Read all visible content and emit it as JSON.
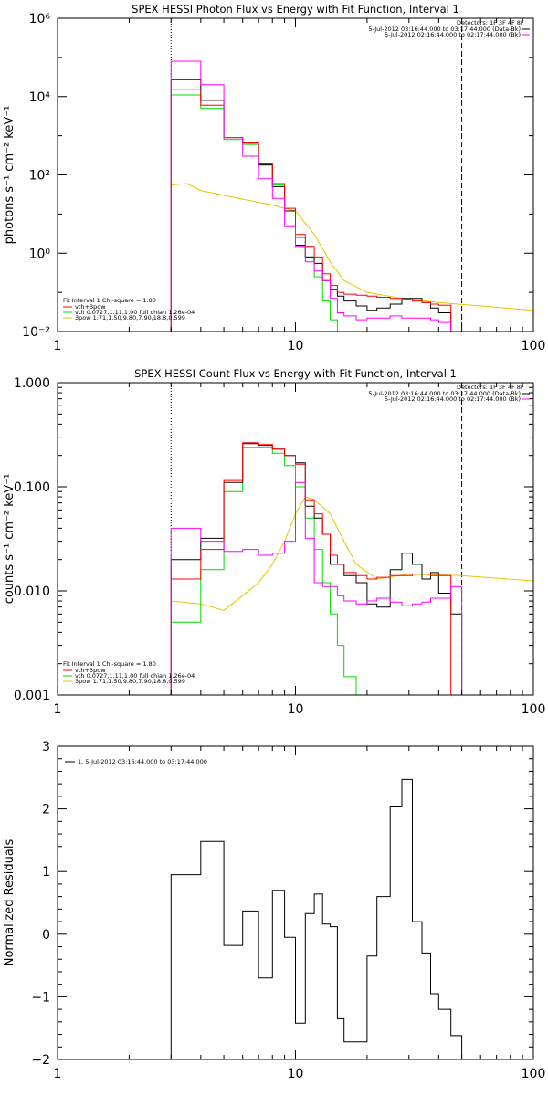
{
  "colors": {
    "data": "#000000",
    "total_fit": "#ff0000",
    "thermal": "#00dd00",
    "power_law": "#e8c400",
    "background": "#ff00ff"
  },
  "chart_data": [
    {
      "type": "line",
      "title": "SPEX HESSI Photon Flux vs Energy with Fit Function, Interval 1",
      "ylabel": "photons s⁻¹ cm⁻² keV⁻¹",
      "xlabel": "",
      "xscale": "log",
      "yscale": "log",
      "xlim": [
        1,
        100
      ],
      "ylim": [
        0.01,
        1000000
      ],
      "xticks": [
        "1",
        "10",
        "100"
      ],
      "yticks": [
        "10⁻²",
        "10⁰",
        "10²",
        "10⁴",
        "10⁶"
      ],
      "vlines": {
        "dotted": 3,
        "dashed": 50
      },
      "detectors": "Detectors: 1F 3F 4F 8F",
      "legend_right": [
        {
          "text": "5-Jul-2012 03:16:44.000 to 03:17:44.000 (Data-Bk)",
          "color": "#000000"
        },
        {
          "text": "5-Jul-2012 02:16:44.000 to 02:17:44.000 (Bk)",
          "color": "#ff00ff"
        }
      ],
      "fit_header": "Fit Interval  1    Chi-square = 1.80",
      "legend_left": [
        {
          "text": "vth+3pow",
          "color": "#ff0000"
        },
        {
          "text": "vth 0.0727,1.11,1.00  full chian 1.26e-04",
          "color": "#00dd00"
        },
        {
          "text": "3pow 1.71,1.50,9.80,7.90,18.8,0.599",
          "color": "#e8c400"
        }
      ],
      "edges": [
        3,
        4,
        5,
        6,
        7,
        8,
        9,
        10,
        11,
        12,
        13,
        14,
        15,
        16,
        18,
        20,
        22,
        25,
        28,
        31,
        34,
        37,
        40,
        45,
        50
      ],
      "series": [
        {
          "name": "Data-Bk",
          "color": "#000000",
          "values": [
            27000,
            8000,
            900,
            650,
            180,
            50,
            12,
            1.6,
            0.8,
            0.55,
            0.2,
            0.12,
            0.08,
            0.06,
            0.045,
            0.035,
            0.04,
            0.05,
            0.07,
            0.07,
            0.055,
            0.04,
            0.03,
            0.01
          ]
        },
        {
          "name": "vth+3pow",
          "color": "#ff0000",
          "values": [
            15000,
            6000,
            900,
            650,
            190,
            60,
            14,
            3,
            1.5,
            0.8,
            0.3,
            0.15,
            0.1,
            0.09,
            0.085,
            0.08,
            0.075,
            0.07,
            0.065,
            0.06,
            0.055,
            0.05,
            0.047,
            null
          ]
        },
        {
          "name": "Bk",
          "color": "#ff00ff",
          "values": [
            80000,
            20000,
            900,
            300,
            80,
            25,
            5,
            1.5,
            0.6,
            0.35,
            0.2,
            0.07,
            0.03,
            0.025,
            0.02,
            0.022,
            0.022,
            0.025,
            0.022,
            0.022,
            0.022,
            0.02,
            0.017,
            0.006
          ]
        }
      ],
      "thermal": {
        "name": "vth",
        "color": "#00dd00",
        "start": 3,
        "end": 18,
        "values": [
          11000,
          5000,
          800,
          600,
          180,
          55,
          12,
          2.5,
          0.8,
          0.25,
          0.06,
          0.02,
          0.008,
          0.004
        ]
      },
      "power_law": {
        "name": "3pow",
        "color": "#e8c400",
        "points": [
          [
            3,
            55
          ],
          [
            3.5,
            60
          ],
          [
            4,
            40
          ],
          [
            5,
            30
          ],
          [
            6,
            24
          ],
          [
            7,
            20
          ],
          [
            8,
            17
          ],
          [
            9,
            14
          ],
          [
            10,
            12
          ],
          [
            12,
            3
          ],
          [
            14,
            0.6
          ],
          [
            16,
            0.2
          ],
          [
            20,
            0.1
          ],
          [
            28,
            0.07
          ],
          [
            40,
            0.055
          ],
          [
            60,
            0.045
          ],
          [
            100,
            0.035
          ]
        ]
      }
    },
    {
      "type": "line",
      "title": "SPEX HESSI Count Flux vs Energy with Fit Function, Interval 1",
      "ylabel": "counts s⁻¹ cm⁻² keV⁻¹",
      "xlabel": "",
      "xscale": "log",
      "yscale": "log",
      "xlim": [
        1,
        100
      ],
      "ylim": [
        0.001,
        1.0
      ],
      "xticks": [
        "1",
        "10",
        "100"
      ],
      "yticks": [
        "0.001",
        "0.010",
        "0.100",
        "1.000"
      ],
      "vlines": {
        "dotted": 3,
        "dashed": 50
      },
      "detectors": "Detectors: 1F 3F 4F 8F",
      "legend_right": [
        {
          "text": "5-Jul-2012 03:16:44.000 to 03:17:44.000 (Data-Bk)",
          "color": "#000000"
        },
        {
          "text": "5-Jul-2012 02:16:44.000 to 02:17:44.000 (Bk)",
          "color": "#ff00ff"
        }
      ],
      "fit_header": "Fit Interval  1    Chi-square = 1.80",
      "legend_left": [
        {
          "text": "vth+3pow",
          "color": "#ff0000"
        },
        {
          "text": "vth 0.0727,1.11,1.00  full chian 1.26e-04",
          "color": "#00dd00"
        },
        {
          "text": "3pow 1.71,1.50,9.80,7.90,18.8,0.599",
          "color": "#e8c400"
        }
      ],
      "edges": [
        3,
        4,
        5,
        6,
        7,
        8,
        9,
        10,
        11,
        12,
        13,
        14,
        15,
        16,
        18,
        20,
        22,
        25,
        28,
        31,
        34,
        37,
        40,
        45,
        50
      ],
      "series": [
        {
          "name": "Data-Bk",
          "color": "#000000",
          "values": [
            0.02,
            0.032,
            0.11,
            0.26,
            0.25,
            0.23,
            0.2,
            0.17,
            0.065,
            0.05,
            0.035,
            0.018,
            0.018,
            0.014,
            0.012,
            0.0075,
            0.007,
            0.016,
            0.023,
            0.018,
            0.013,
            0.015,
            0.0095,
            0.006
          ]
        },
        {
          "name": "vth+3pow",
          "color": "#ff0000",
          "values": [
            0.013,
            0.025,
            0.115,
            0.265,
            0.255,
            0.23,
            0.2,
            0.165,
            0.075,
            0.055,
            0.035,
            0.022,
            0.018,
            0.015,
            0.014,
            0.013,
            0.0135,
            0.014,
            0.014,
            0.0145,
            0.0145,
            0.014,
            0.014,
            null
          ]
        },
        {
          "name": "Bk",
          "color": "#ff00ff",
          "values": [
            0.04,
            0.03,
            0.024,
            0.025,
            0.022,
            0.023,
            0.03,
            0.11,
            0.032,
            0.012,
            0.011,
            0.011,
            0.009,
            0.008,
            0.0075,
            0.008,
            0.0085,
            0.0078,
            0.0072,
            0.0075,
            0.0078,
            0.0085,
            0.0085,
            0.011
          ]
        }
      ],
      "thermal": {
        "name": "vth",
        "color": "#00dd00",
        "start": 3,
        "end": 20,
        "values": [
          0.005,
          0.016,
          0.09,
          0.24,
          0.24,
          0.21,
          0.16,
          0.1,
          0.05,
          0.025,
          0.012,
          0.006,
          0.003,
          0.0015,
          0.0009
        ]
      },
      "power_law": {
        "name": "3pow",
        "color": "#e8c400",
        "points": [
          [
            3,
            0.008
          ],
          [
            4,
            0.0075
          ],
          [
            5,
            0.0065
          ],
          [
            6,
            0.009
          ],
          [
            7,
            0.012
          ],
          [
            8,
            0.018
          ],
          [
            9,
            0.03
          ],
          [
            10,
            0.055
          ],
          [
            11,
            0.08
          ],
          [
            12,
            0.075
          ],
          [
            14,
            0.055
          ],
          [
            16,
            0.03
          ],
          [
            18,
            0.018
          ],
          [
            22,
            0.013
          ],
          [
            30,
            0.0145
          ],
          [
            50,
            0.014
          ],
          [
            100,
            0.0125
          ]
        ]
      }
    },
    {
      "type": "line",
      "title": "",
      "ylabel": "Normalized Residuals",
      "xlabel": "",
      "xscale": "log",
      "yscale": "linear",
      "xlim": [
        1,
        100
      ],
      "ylim": [
        -2,
        3
      ],
      "xticks": [
        "1",
        "10",
        "100"
      ],
      "yticks": [
        "−2",
        "−1",
        "0",
        "1",
        "2",
        "3"
      ],
      "legend": [
        {
          "text": "1.  5-Jul-2012 03:16:44.000 to 03:17:44.000",
          "color": "#000000"
        }
      ],
      "edges": [
        3,
        4,
        5,
        6,
        7,
        8,
        9,
        10,
        11,
        12,
        13,
        14,
        15,
        16,
        18,
        20,
        22,
        25,
        28,
        31,
        34,
        37,
        40,
        45,
        50
      ],
      "series": [
        {
          "name": "1.  5-Jul-2012 03:16:44.000 to 03:17:44.000",
          "color": "#000000",
          "values": [
            0.95,
            1.48,
            -0.18,
            0.37,
            -0.7,
            0.7,
            -0.05,
            -1.42,
            0.33,
            0.64,
            0.16,
            0.12,
            -1.35,
            -1.72,
            -1.72,
            -0.35,
            0.6,
            2.03,
            2.47,
            0.2,
            -0.3,
            -0.95,
            -1.2,
            -1.62
          ]
        }
      ]
    }
  ]
}
